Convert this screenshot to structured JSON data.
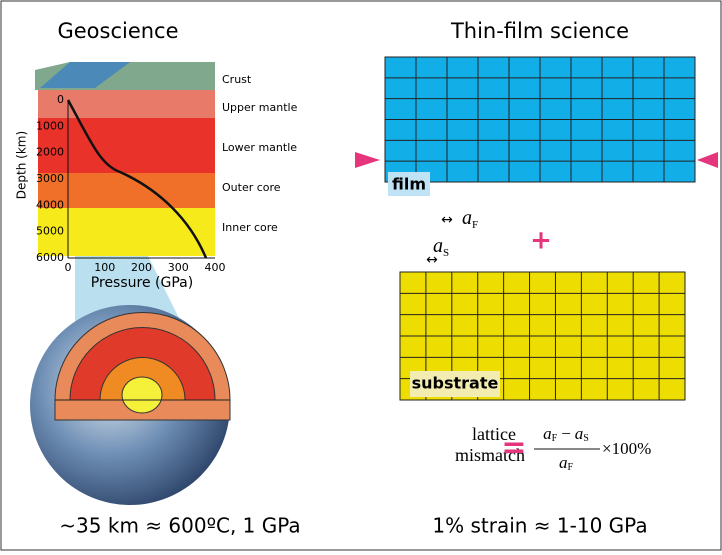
{
  "left": {
    "title": "Geoscience",
    "layers": [
      "Crust",
      "Upper mantle",
      "Lower mantle",
      "Outer core",
      "Inner core"
    ],
    "y_label": "Depth (km)",
    "yticks": [
      "0",
      "1000",
      "2000",
      "3000",
      "4000",
      "5000",
      "6000"
    ],
    "x_label": "Pressure (GPa)",
    "xticks": [
      "0",
      "100",
      "200",
      "300",
      "400"
    ],
    "caption": "~35 km ≈ 600ºC, 1 GPa"
  },
  "right": {
    "title": "Thin-film science",
    "film_label": "film",
    "substrate_label": "substrate",
    "a_film": {
      "symbol": "a",
      "sub": "F"
    },
    "a_substrate": {
      "symbol": "a",
      "sub": "S"
    },
    "plus": "+",
    "formula": {
      "word1": "lattice",
      "word2": "mismatch",
      "equals": "=",
      "minus": "−",
      "factor": "×100%"
    },
    "caption": "1% strain ≈ 1-10 GPa"
  }
}
